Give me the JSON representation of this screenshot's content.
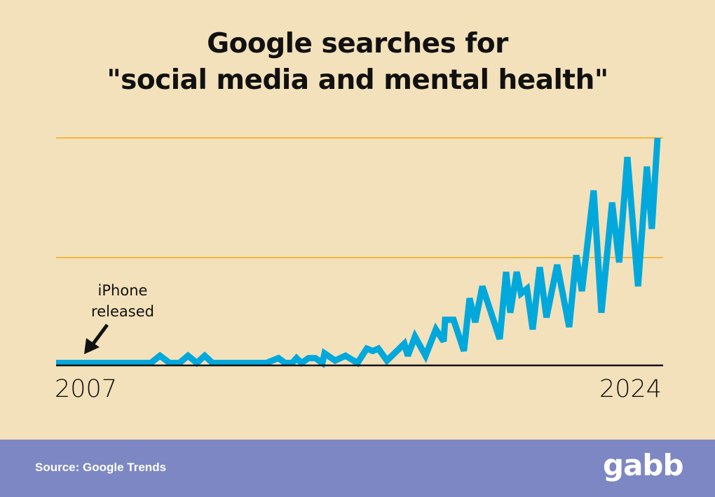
{
  "chart_data": {
    "type": "line",
    "title": [
      "Google searches for",
      "\"social media and mental health\""
    ],
    "xlabel": "",
    "ylabel": "",
    "x_tick_labels": [
      "2007",
      "2024"
    ],
    "xlim": [
      2007,
      2024
    ],
    "ylim": [
      0,
      100
    ],
    "gridlines_at": [
      50,
      100
    ],
    "grid": true,
    "annotation": {
      "text_lines": [
        "iPhone",
        "released"
      ],
      "x": 2007.5
    },
    "colors": {
      "line": "#00a8dc",
      "grid": "#f0b73a",
      "axis": "#111111",
      "background": "#f3e1bb"
    },
    "series": [
      {
        "x": [
          2007.0,
          2009.67,
          2009.93,
          2010.2,
          2010.48,
          2010.72,
          2010.97,
          2011.19,
          2011.41,
          2012.93,
          2013.27,
          2013.46,
          2013.66,
          2013.78,
          2013.92,
          2014.12,
          2014.31,
          2014.51,
          2014.57,
          2014.87,
          2015.16,
          2015.5,
          2015.76,
          2015.93,
          2016.09,
          2016.33,
          2016.82,
          2016.92,
          2017.12,
          2017.42,
          2017.71,
          2017.93,
          2017.97,
          2018.21,
          2018.5,
          2018.66,
          2018.82,
          2019.02,
          2019.51,
          2019.69,
          2019.81,
          2019.99,
          2020.11,
          2020.28,
          2020.44,
          2020.64,
          2020.83,
          2021.13,
          2021.47,
          2021.67,
          2021.83,
          2022.16,
          2022.38,
          2022.68,
          2022.88,
          2023.11,
          2023.41,
          2023.66,
          2023.8,
          2023.96
        ],
        "y": [
          6,
          6,
          9,
          6,
          6,
          9,
          6,
          9,
          6,
          6,
          8,
          6,
          6,
          8,
          6,
          8,
          8,
          6,
          10,
          7,
          9,
          6,
          12,
          11,
          12,
          7,
          14,
          9,
          17,
          9,
          20,
          15,
          24,
          24,
          11,
          33,
          23,
          38,
          16,
          44,
          27,
          44,
          35,
          37,
          20,
          46,
          25,
          47,
          21,
          51,
          36,
          78,
          27,
          73,
          48,
          92,
          38,
          88,
          62,
          100
        ]
      }
    ]
  },
  "footer": {
    "source": "Source: Google Trends",
    "logo": "gabb"
  }
}
